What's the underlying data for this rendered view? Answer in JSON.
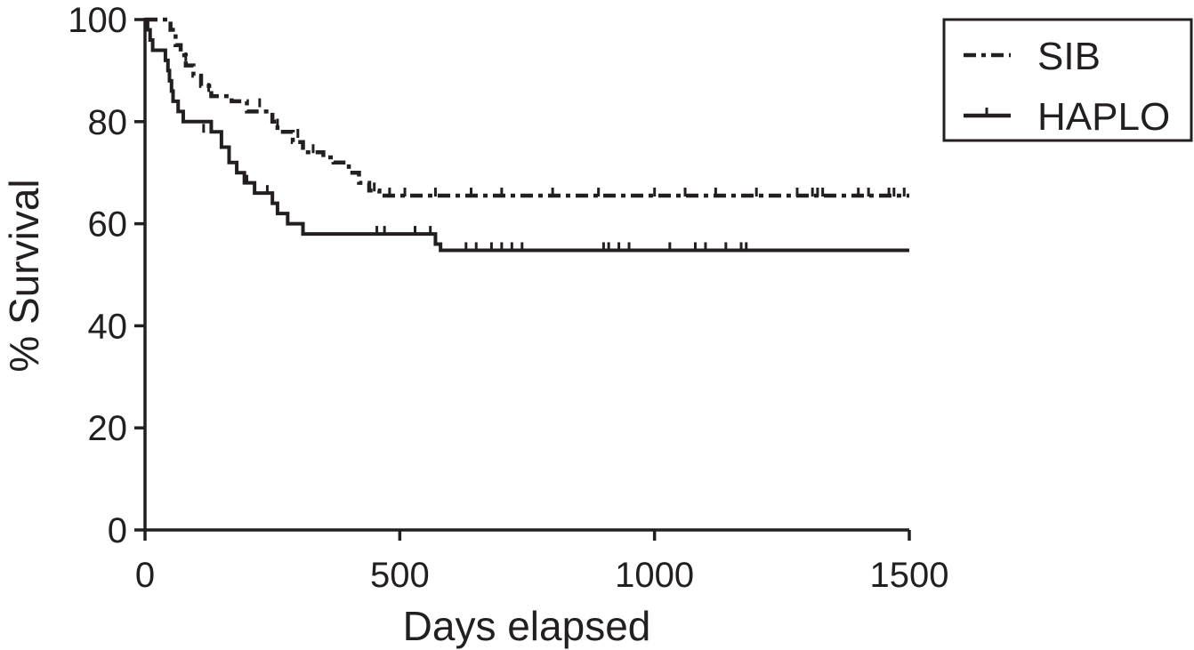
{
  "colors": {
    "ink": "#231f20",
    "background": "#ffffff"
  },
  "chart_data": {
    "type": "line",
    "subtype": "kaplan-meier step",
    "title": "",
    "xlabel": "Days elapsed",
    "ylabel": "% Survival",
    "xlim": [
      0,
      1500
    ],
    "ylim": [
      0,
      100
    ],
    "xticks": [
      0,
      500,
      1000,
      1500
    ],
    "yticks": [
      0,
      20,
      40,
      60,
      80,
      100
    ],
    "grid": false,
    "legend": "top-right",
    "series": [
      {
        "name": "SIB",
        "style": "dash-dot",
        "steps": [
          [
            0,
            100
          ],
          [
            50,
            98
          ],
          [
            60,
            95
          ],
          [
            70,
            93
          ],
          [
            80,
            91
          ],
          [
            95,
            89
          ],
          [
            110,
            87
          ],
          [
            130,
            85
          ],
          [
            170,
            84
          ],
          [
            200,
            82
          ],
          [
            250,
            80
          ],
          [
            260,
            78
          ],
          [
            290,
            76
          ],
          [
            310,
            74
          ],
          [
            350,
            73
          ],
          [
            370,
            72
          ],
          [
            400,
            70
          ],
          [
            420,
            68
          ],
          [
            440,
            66.5
          ],
          [
            460,
            65.5
          ]
        ],
        "end_x": 1500,
        "censored": [
          [
            80,
            92
          ],
          [
            125,
            86
          ],
          [
            225,
            83
          ],
          [
            260,
            79
          ],
          [
            300,
            77
          ],
          [
            330,
            74
          ],
          [
            450,
            66.5
          ],
          [
            480,
            65.5
          ],
          [
            510,
            65.5
          ],
          [
            570,
            65.5
          ],
          [
            640,
            65.5
          ],
          [
            700,
            65.5
          ],
          [
            800,
            65.5
          ],
          [
            890,
            65.5
          ],
          [
            1000,
            65.5
          ],
          [
            1060,
            65.5
          ],
          [
            1120,
            65.5
          ],
          [
            1200,
            65.5
          ],
          [
            1280,
            65.5
          ],
          [
            1310,
            65.5
          ],
          [
            1320,
            65.5
          ],
          [
            1330,
            65.5
          ],
          [
            1400,
            65.5
          ],
          [
            1420,
            65.5
          ],
          [
            1460,
            65.5
          ],
          [
            1470,
            65.5
          ],
          [
            1490,
            65.5
          ]
        ]
      },
      {
        "name": "HAPLO",
        "style": "solid",
        "steps": [
          [
            0,
            100
          ],
          [
            5,
            98
          ],
          [
            10,
            96
          ],
          [
            15,
            94
          ],
          [
            40,
            92
          ],
          [
            45,
            90
          ],
          [
            48,
            88
          ],
          [
            52,
            86
          ],
          [
            55,
            84
          ],
          [
            65,
            82
          ],
          [
            75,
            80
          ],
          [
            130,
            78
          ],
          [
            150,
            75
          ],
          [
            165,
            72
          ],
          [
            180,
            70
          ],
          [
            195,
            68
          ],
          [
            215,
            66
          ],
          [
            250,
            64
          ],
          [
            260,
            62
          ],
          [
            280,
            60
          ],
          [
            310,
            58
          ],
          [
            570,
            56
          ],
          [
            580,
            54.8
          ]
        ],
        "end_x": 1500,
        "censored": [
          [
            115,
            78
          ],
          [
            200,
            68
          ],
          [
            240,
            66
          ],
          [
            455,
            58
          ],
          [
            470,
            58
          ],
          [
            530,
            58
          ],
          [
            560,
            58
          ],
          [
            630,
            54.8
          ],
          [
            650,
            54.8
          ],
          [
            680,
            54.8
          ],
          [
            700,
            54.8
          ],
          [
            720,
            54.8
          ],
          [
            740,
            54.8
          ],
          [
            900,
            54.8
          ],
          [
            910,
            54.8
          ],
          [
            930,
            54.8
          ],
          [
            950,
            54.8
          ],
          [
            1030,
            54.8
          ],
          [
            1080,
            54.8
          ],
          [
            1100,
            54.8
          ],
          [
            1140,
            54.8
          ],
          [
            1170,
            54.8
          ],
          [
            1180,
            54.8
          ]
        ]
      }
    ]
  }
}
